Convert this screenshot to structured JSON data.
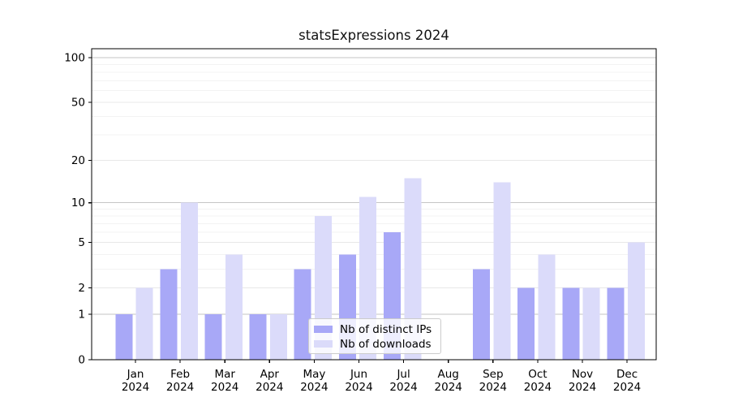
{
  "chart_data": {
    "type": "bar",
    "title": "statsExpressions 2024",
    "x_axis": {
      "categories": [
        "Jan",
        "Feb",
        "Mar",
        "Apr",
        "May",
        "Jun",
        "Jul",
        "Aug",
        "Sep",
        "Oct",
        "Nov",
        "Dec"
      ],
      "year_label": "2024"
    },
    "y_axis": {
      "scale": "log1p",
      "ticks": [
        0,
        1,
        2,
        5,
        10,
        20,
        50,
        100
      ],
      "minor_gridlines": [
        3,
        4,
        6,
        7,
        8,
        9,
        30,
        40,
        60,
        70,
        80,
        90
      ],
      "ylim": [
        0,
        112
      ]
    },
    "series": [
      {
        "name": "Nb of distinct IPs",
        "color": "#a8a8f7",
        "values": [
          1,
          3,
          1,
          1,
          3,
          4,
          6,
          0,
          3,
          2,
          2,
          2
        ]
      },
      {
        "name": "Nb of downloads",
        "color": "#dbdbfa",
        "values": [
          2,
          10,
          4,
          1,
          8,
          11,
          15,
          0,
          14,
          4,
          2,
          5
        ]
      }
    ],
    "legend": {
      "position": "lower center",
      "labels": [
        "Nb of distinct IPs",
        "Nb of downloads"
      ]
    },
    "grid": true,
    "colors": {
      "decade_gridline": "#c6c6c6",
      "major_gridline": "#e8e8e8",
      "minor_gridline": "#f3f3f3",
      "spine": "#000000",
      "text": "#000000"
    }
  }
}
